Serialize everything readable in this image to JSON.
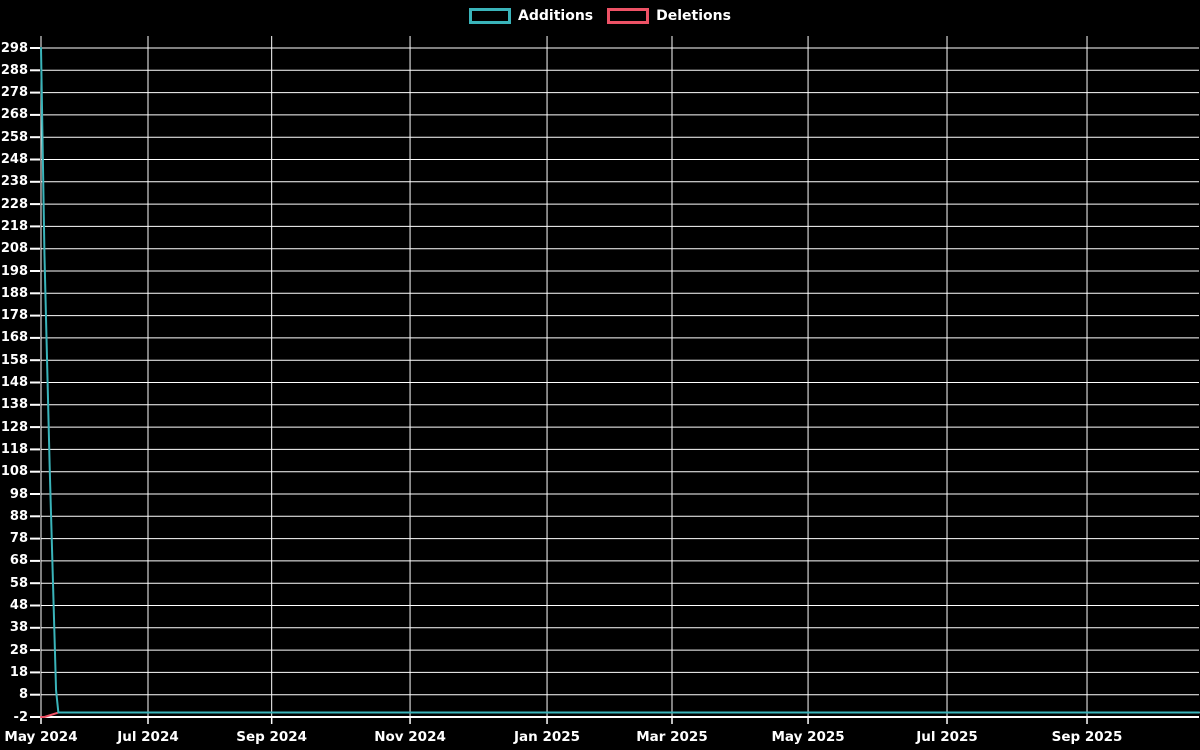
{
  "chart_data": {
    "type": "line",
    "title": "",
    "background_color": "#000000",
    "grid": true,
    "grid_color": "#ffffff",
    "text_color": "#ffffff",
    "legend_position": "top-center",
    "y_axis": {
      "min": -2,
      "max": 298,
      "tick_step": 10,
      "tick_values": [
        298,
        288,
        278,
        268,
        258,
        248,
        238,
        228,
        218,
        208,
        198,
        188,
        178,
        168,
        158,
        148,
        138,
        128,
        118,
        108,
        98,
        88,
        78,
        68,
        58,
        48,
        38,
        28,
        18,
        8,
        -2
      ]
    },
    "x_axis": {
      "ticks": [
        {
          "label": "May 2024",
          "pos": 0.0
        },
        {
          "label": "Jul 2024",
          "pos": 0.0924
        },
        {
          "label": "Sep 2024",
          "pos": 0.1992
        },
        {
          "label": "Nov 2024",
          "pos": 0.3187
        },
        {
          "label": "Jan 2025",
          "pos": 0.437
        },
        {
          "label": "Mar 2025",
          "pos": 0.5449
        },
        {
          "label": "May 2025",
          "pos": 0.6624
        },
        {
          "label": "Jul 2025",
          "pos": 0.7824
        },
        {
          "label": "Sep 2025",
          "pos": 0.9033
        }
      ]
    },
    "series": [
      {
        "name": "Deletions",
        "color": "#ee5266",
        "points_fx_value": [
          [
            0.0,
            -2
          ],
          [
            0.003,
            -2
          ],
          [
            0.015,
            0
          ],
          [
            1.0,
            0
          ]
        ]
      },
      {
        "name": "Additions",
        "color": "#3ab4ba",
        "points_fx_value": [
          [
            0.0,
            298
          ],
          [
            0.003,
            205
          ],
          [
            0.0075,
            110
          ],
          [
            0.013,
            10
          ],
          [
            0.015,
            0
          ],
          [
            1.0,
            0
          ]
        ]
      }
    ],
    "legend_order": [
      "Additions",
      "Deletions"
    ]
  }
}
